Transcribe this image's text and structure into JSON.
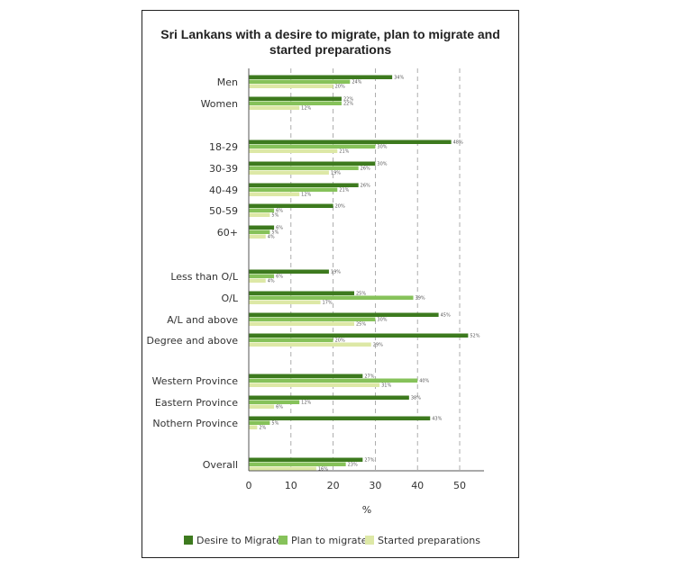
{
  "chart_data": {
    "type": "bar",
    "orientation": "horizontal",
    "title": "Sri Lankans with a desire to migrate, plan to migrate and started preparations",
    "title_lines": [
      "Sri Lankans with a desire to migrate, plan to migrate and",
      "started preparations"
    ],
    "xlabel": "%",
    "ylabel": "",
    "xlim": [
      0,
      55
    ],
    "xticks": [
      0,
      10,
      20,
      30,
      40,
      50
    ],
    "grid": "dashed vertical",
    "legend_position": "bottom",
    "categories": [
      "Men",
      "Women",
      "18-29",
      "30-39",
      "40-49",
      "50-59",
      "60+",
      "Less than O/L",
      "O/L",
      "A/L and above",
      "Degree and above",
      "Western Province",
      "Eastern Province",
      "Nothern Province",
      "Overall"
    ],
    "category_groups": [
      [
        0,
        1
      ],
      [
        2,
        3,
        4,
        5,
        6
      ],
      [
        7,
        8,
        9,
        10
      ],
      [
        11,
        12,
        13
      ],
      [
        14
      ]
    ],
    "series": [
      {
        "name": "Desire to Migrate",
        "color": "#3d7a1e",
        "values": [
          34,
          22,
          48,
          30,
          26,
          20,
          6,
          19,
          25,
          45,
          52,
          27,
          38,
          43,
          27
        ],
        "labels": [
          "34%",
          "22%",
          "48%",
          "30%",
          "26%",
          "20%",
          "6%",
          "19%",
          "25%",
          "45%",
          "52%",
          "27%",
          "38%",
          "43%",
          "27%"
        ]
      },
      {
        "name": "Plan to migrate",
        "color": "#86c25a",
        "values": [
          24,
          22,
          30,
          26,
          21,
          6,
          5,
          6,
          39,
          30,
          20,
          40,
          12,
          5,
          23
        ],
        "labels": [
          "24%",
          "22%",
          "30%",
          "26%",
          "21%",
          "6%",
          "5%",
          "6%",
          "39%",
          "30%",
          "20%",
          "40%",
          "12%",
          "5%",
          "23%"
        ]
      },
      {
        "name": "Started preparations",
        "color": "#dde8a6",
        "values": [
          20,
          12,
          21,
          19,
          12,
          5,
          4,
          4,
          17,
          25,
          29,
          31,
          6,
          2,
          16
        ],
        "labels": [
          "20%",
          "12%",
          "21%",
          "19%",
          "12%",
          "5%",
          "4%",
          "4%",
          "17%",
          "25%",
          "29%",
          "31%",
          "6%",
          "2%",
          "16%"
        ]
      }
    ]
  }
}
